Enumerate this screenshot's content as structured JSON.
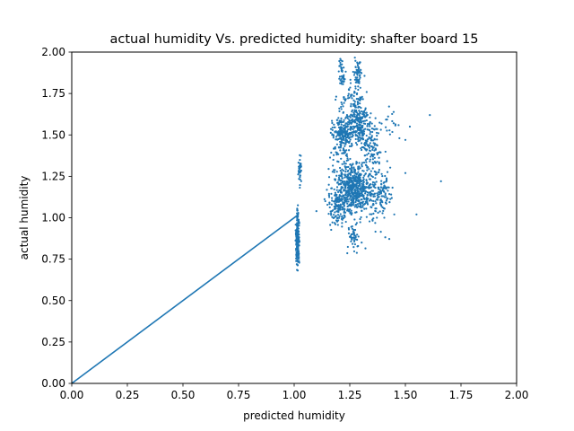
{
  "chart_data": {
    "type": "scatter",
    "title": "actual humidity Vs. predicted humidity: shafter board 15",
    "xlabel": "predicted humidity",
    "ylabel": "actual humidity",
    "xlim": [
      0,
      2
    ],
    "ylim": [
      0,
      2
    ],
    "xticks": [
      "0.00",
      "0.25",
      "0.50",
      "0.75",
      "1.00",
      "1.25",
      "1.50",
      "1.75",
      "2.00"
    ],
    "yticks": [
      "0.00",
      "0.25",
      "0.50",
      "0.75",
      "1.00",
      "1.25",
      "1.50",
      "1.75",
      "2.00"
    ],
    "grid": false,
    "colors": {
      "series": "#1f77b4",
      "axis": "#000000"
    },
    "series": [
      {
        "type": "line",
        "x": [
          0.0,
          1.02
        ],
        "y": [
          0.0,
          1.02
        ]
      },
      {
        "type": "scatter",
        "clusters": [
          {
            "cx": 1.015,
            "cy": 0.87,
            "sx": 0.004,
            "sy": 0.09,
            "n": 180
          },
          {
            "cx": 1.025,
            "cy": 1.29,
            "sx": 0.003,
            "sy": 0.05,
            "n": 40
          },
          {
            "cx": 1.27,
            "cy": 1.18,
            "sx": 0.045,
            "sy": 0.07,
            "n": 650
          },
          {
            "cx": 1.22,
            "cy": 1.5,
            "sx": 0.025,
            "sy": 0.07,
            "n": 260
          },
          {
            "cx": 1.29,
            "cy": 1.58,
            "sx": 0.02,
            "sy": 0.06,
            "n": 200
          },
          {
            "cx": 1.34,
            "cy": 1.45,
            "sx": 0.025,
            "sy": 0.06,
            "n": 110
          },
          {
            "cx": 1.28,
            "cy": 1.86,
            "sx": 0.01,
            "sy": 0.05,
            "n": 60
          },
          {
            "cx": 1.215,
            "cy": 1.87,
            "sx": 0.008,
            "sy": 0.05,
            "n": 40
          },
          {
            "cx": 1.25,
            "cy": 1.72,
            "sx": 0.03,
            "sy": 0.05,
            "n": 50
          },
          {
            "cx": 1.2,
            "cy": 1.05,
            "sx": 0.025,
            "sy": 0.05,
            "n": 120
          },
          {
            "cx": 1.38,
            "cy": 1.12,
            "sx": 0.03,
            "sy": 0.12,
            "n": 120
          },
          {
            "cx": 1.27,
            "cy": 0.88,
            "sx": 0.015,
            "sy": 0.04,
            "n": 50
          },
          {
            "cx": 1.43,
            "cy": 1.56,
            "sx": 0.03,
            "sy": 0.05,
            "n": 20
          }
        ],
        "points": [
          {
            "x": 1.61,
            "y": 1.62
          },
          {
            "x": 1.66,
            "y": 1.22
          },
          {
            "x": 1.55,
            "y": 1.02
          },
          {
            "x": 1.52,
            "y": 1.55
          },
          {
            "x": 1.5,
            "y": 1.47
          },
          {
            "x": 1.45,
            "y": 1.02
          },
          {
            "x": 1.1,
            "y": 1.04
          },
          {
            "x": 1.14,
            "y": 1.1
          },
          {
            "x": 1.5,
            "y": 1.27
          }
        ]
      }
    ]
  }
}
